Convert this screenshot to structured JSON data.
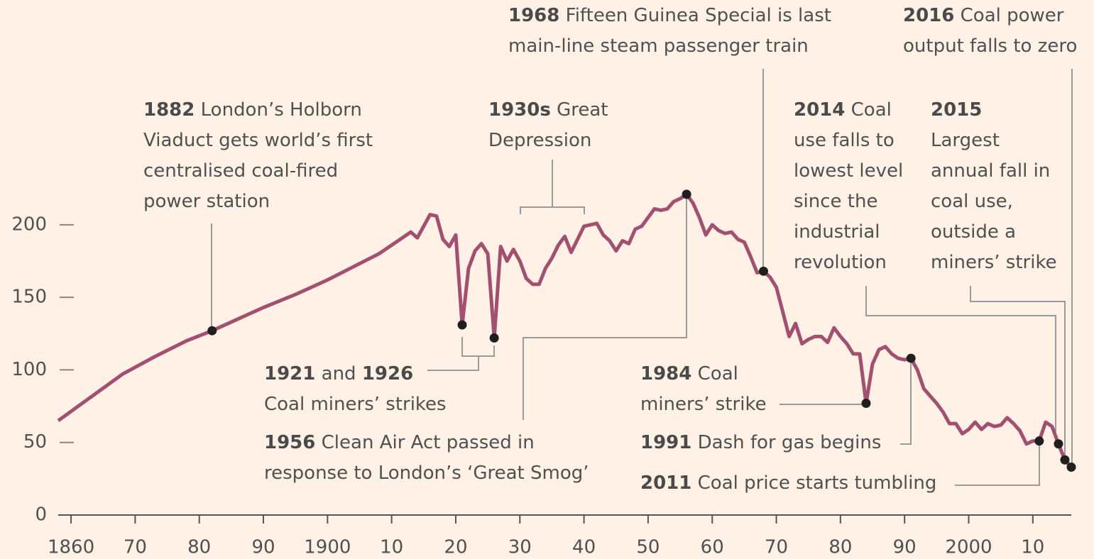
{
  "chart_data": {
    "type": "line",
    "color": "#a2506f",
    "xlim": [
      1858,
      2016
    ],
    "ylim": [
      0,
      350
    ],
    "xticks": [
      1860,
      {
        "value": 1870,
        "label": "70"
      },
      {
        "value": 1880,
        "label": "80"
      },
      {
        "value": 1890,
        "label": "90"
      },
      1900,
      {
        "value": 1910,
        "label": "10"
      },
      {
        "value": 1920,
        "label": "20"
      },
      {
        "value": 1930,
        "label": "30"
      },
      {
        "value": 1940,
        "label": "40"
      },
      {
        "value": 1950,
        "label": "50"
      },
      {
        "value": 1960,
        "label": "60"
      },
      {
        "value": 1970,
        "label": "70"
      },
      {
        "value": 1980,
        "label": "80"
      },
      {
        "value": 1990,
        "label": "90"
      },
      2000,
      {
        "value": 2010,
        "label": "10"
      }
    ],
    "yticks": [
      0,
      50,
      100,
      150,
      200
    ],
    "x": [
      1858,
      1863,
      1868,
      1873,
      1878,
      1882,
      1886,
      1890,
      1895,
      1900,
      1904,
      1908,
      1911,
      1913,
      1914,
      1915,
      1916,
      1917,
      1918,
      1919,
      1920,
      1921,
      1922,
      1923,
      1924,
      1925,
      1926,
      1927,
      1928,
      1929,
      1930,
      1931,
      1932,
      1933,
      1934,
      1935,
      1936,
      1937,
      1938,
      1939,
      1940,
      1941,
      1942,
      1943,
      1944,
      1945,
      1946,
      1947,
      1948,
      1949,
      1950,
      1951,
      1952,
      1953,
      1954,
      1955,
      1956,
      1957,
      1958,
      1959,
      1960,
      1961,
      1962,
      1963,
      1964,
      1965,
      1966,
      1967,
      1968,
      1969,
      1970,
      1971,
      1972,
      1973,
      1974,
      1975,
      1976,
      1977,
      1978,
      1979,
      1980,
      1981,
      1982,
      1983,
      1984,
      1985,
      1986,
      1987,
      1988,
      1989,
      1990,
      1991,
      1992,
      1993,
      1994,
      1995,
      1996,
      1997,
      1998,
      1999,
      2000,
      2001,
      2002,
      2003,
      2004,
      2005,
      2006,
      2007,
      2008,
      2009,
      2010,
      2011,
      2012,
      2013,
      2014,
      2015,
      2016
    ],
    "values": [
      65,
      81,
      97,
      109,
      120,
      127,
      135,
      143,
      152,
      162,
      171,
      180,
      189,
      195,
      191,
      199,
      207,
      206,
      190,
      185,
      193,
      131,
      170,
      182,
      187,
      180,
      122,
      185,
      175,
      183,
      175,
      163,
      159,
      159,
      170,
      177,
      186,
      192,
      181,
      190,
      199,
      200,
      201,
      193,
      189,
      182,
      189,
      187,
      197,
      199,
      205,
      211,
      210,
      211,
      216,
      218,
      221,
      215,
      205,
      193,
      200,
      196,
      194,
      195,
      190,
      188,
      178,
      167,
      168,
      164,
      157,
      140,
      123,
      132,
      118,
      121,
      123,
      123,
      119,
      129,
      123,
      118,
      111,
      111,
      77,
      104,
      114,
      116,
      111,
      108,
      107,
      108,
      100,
      87,
      82,
      77,
      71,
      63,
      63,
      56,
      59,
      64,
      59,
      63,
      61,
      62,
      67,
      63,
      58,
      49,
      51,
      51,
      64,
      61,
      49,
      38,
      33
    ],
    "annotations": [
      {
        "lines": [
          [
            {
              "text": "1882",
              "bold": true
            },
            {
              "text": " London’s Holborn"
            }
          ],
          [
            {
              "text": "Viaduct gets world’s first"
            }
          ],
          [
            {
              "text": "centralised coal-fired"
            }
          ],
          [
            {
              "text": "power station"
            }
          ]
        ]
      },
      {
        "lines": [
          [
            {
              "text": "1930s",
              "bold": true
            },
            {
              "text": " Great"
            }
          ],
          [
            {
              "text": "Depression"
            }
          ]
        ]
      },
      {
        "lines": [
          [
            {
              "text": "1968",
              "bold": true
            },
            {
              "text": " Fifteen Guinea Special is last"
            }
          ],
          [
            {
              "text": "main-line steam passenger train"
            }
          ]
        ]
      },
      {
        "lines": [
          [
            {
              "text": "2016",
              "bold": true
            },
            {
              "text": " Coal power"
            }
          ],
          [
            {
              "text": "output falls to zero"
            }
          ]
        ]
      },
      {
        "lines": [
          [
            {
              "text": "2014",
              "bold": true
            },
            {
              "text": " Coal"
            }
          ],
          [
            {
              "text": "use falls to"
            }
          ],
          [
            {
              "text": "lowest level"
            }
          ],
          [
            {
              "text": "since the"
            }
          ],
          [
            {
              "text": "industrial"
            }
          ],
          [
            {
              "text": "revolution"
            }
          ]
        ]
      },
      {
        "lines": [
          [
            {
              "text": "2015",
              "bold": true
            }
          ],
          [
            {
              "text": "Largest"
            }
          ],
          [
            {
              "text": "annual fall in"
            }
          ],
          [
            {
              "text": "coal use,"
            }
          ],
          [
            {
              "text": "outside a"
            }
          ],
          [
            {
              "text": "miners’ strike"
            }
          ]
        ]
      },
      {
        "lines": [
          [
            {
              "text": "1921",
              "bold": true
            },
            {
              "text": " and "
            },
            {
              "text": "1926",
              "bold": true
            }
          ],
          [
            {
              "text": "Coal miners’ strikes"
            }
          ]
        ]
      },
      {
        "lines": [
          [
            {
              "text": "1956",
              "bold": true
            },
            {
              "text": " Clean Air Act passed in"
            }
          ],
          [
            {
              "text": "response to London’s ‘Great Smog’"
            }
          ]
        ]
      },
      {
        "lines": [
          [
            {
              "text": "1984",
              "bold": true
            },
            {
              "text": " Coal"
            }
          ],
          [
            {
              "text": "miners’ strike"
            }
          ]
        ]
      },
      {
        "lines": [
          [
            {
              "text": "1991",
              "bold": true
            },
            {
              "text": " Dash for gas begins"
            }
          ]
        ]
      },
      {
        "lines": [
          [
            {
              "text": "2011",
              "bold": true
            },
            {
              "text": " Coal price starts tumbling"
            }
          ]
        ]
      }
    ]
  }
}
